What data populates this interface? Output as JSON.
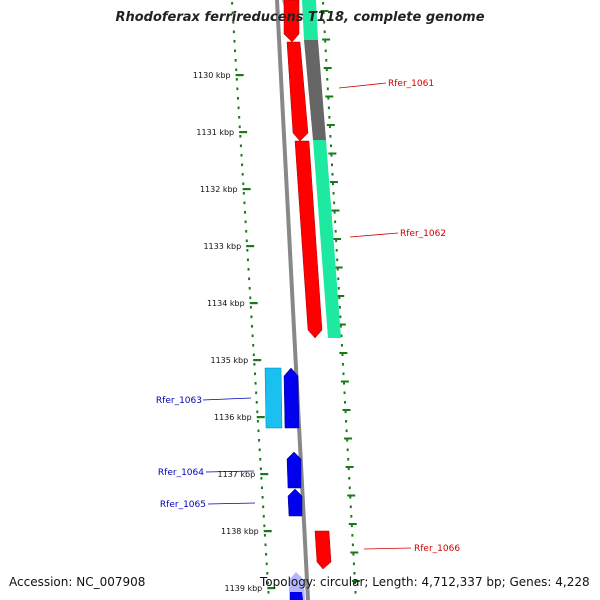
{
  "title": "Rhodoferax ferrireducens T118, complete genome",
  "accession": "Accession: NC_007908",
  "topology": "Topology: circular; Length: 4,712,337 bp; Genes: 4,228",
  "ticks": [
    "1130 kbp",
    "1131 kbp",
    "1132 kbp",
    "1133 kbp",
    "1134 kbp",
    "1135 kbp",
    "1136 kbp",
    "1137 kbp",
    "1138 kbp",
    "1139 kbp"
  ],
  "genes": [
    {
      "label": "Rfer_1061",
      "color": "#cc0000"
    },
    {
      "label": "Rfer_1062",
      "color": "#cc0000"
    },
    {
      "label": "Rfer_1063",
      "color": "#0000bb"
    },
    {
      "label": "Rfer_1064",
      "color": "#0000bb"
    },
    {
      "label": "Rfer_1065",
      "color": "#0000bb"
    },
    {
      "label": "Rfer_1066",
      "color": "#cc0000"
    }
  ],
  "colors": {
    "forward_strand": "#ff0000",
    "reverse_strand": "#0000ee",
    "gc_skew_plus": "#1de9a0",
    "gc_skew_grey": "#666666",
    "light_blue": "#19c0f0",
    "backbone": "#888888",
    "tick": "#1a7a1a"
  }
}
